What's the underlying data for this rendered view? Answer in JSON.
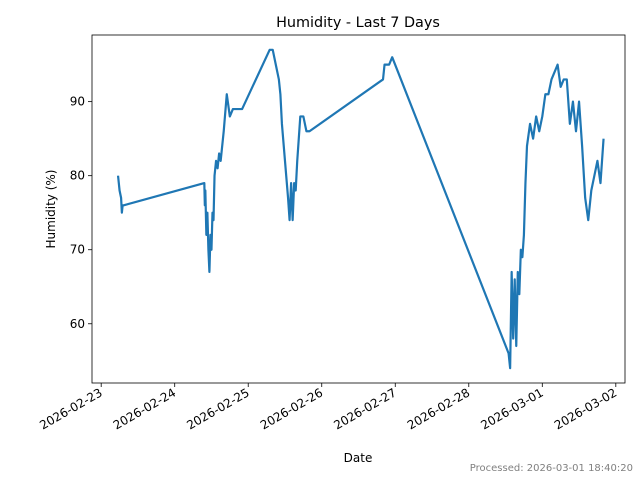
{
  "chart_data": {
    "type": "line",
    "title": "Humidity - Last 7 Days",
    "xlabel": "Date",
    "ylabel": "Humidity (%)",
    "x_tick_labels": [
      "2026-02-23",
      "2026-02-24",
      "2026-02-25",
      "2026-02-26",
      "2026-02-27",
      "2026-02-28",
      "2026-03-01",
      "2026-03-02"
    ],
    "y_ticks": [
      60,
      70,
      80,
      90
    ],
    "xlim": [
      "2026-02-22T21:00",
      "2026-03-02T03:00"
    ],
    "ylim": [
      52,
      99
    ],
    "grid": false,
    "line_color": "#1f77b4",
    "series": [
      {
        "x": [
          "2026-02-23T05:30",
          "2026-02-23T06:00",
          "2026-02-23T06:30",
          "2026-02-23T06:45",
          "2026-02-23T07:00",
          "2026-02-23T07:20",
          "2026-02-24T09:40",
          "2026-02-24T09:50",
          "2026-02-24T10:00",
          "2026-02-24T10:20",
          "2026-02-24T10:40",
          "2026-02-24T11:00",
          "2026-02-24T11:20",
          "2026-02-24T11:40",
          "2026-02-24T12:00",
          "2026-02-24T12:20",
          "2026-02-24T12:40",
          "2026-02-24T13:00",
          "2026-02-24T13:30",
          "2026-02-24T14:00",
          "2026-02-24T14:30",
          "2026-02-24T15:00",
          "2026-02-24T16:00",
          "2026-02-24T17:00",
          "2026-02-24T18:00",
          "2026-02-24T19:00",
          "2026-02-24T19:30",
          "2026-02-24T20:00",
          "2026-02-24T21:00",
          "2026-02-24T22:00",
          "2026-02-25T07:00",
          "2026-02-25T08:00",
          "2026-02-25T09:00",
          "2026-02-25T10:00",
          "2026-02-25T10:30",
          "2026-02-25T11:00",
          "2026-02-25T12:00",
          "2026-02-25T13:00",
          "2026-02-25T13:30",
          "2026-02-25T14:00",
          "2026-02-25T14:30",
          "2026-02-25T15:00",
          "2026-02-25T15:30",
          "2026-02-25T16:00",
          "2026-02-25T16:30",
          "2026-02-25T17:00",
          "2026-02-25T18:00",
          "2026-02-25T19:00",
          "2026-02-25T20:00",
          "2026-02-26T20:00",
          "2026-02-26T20:30",
          "2026-02-26T21:00",
          "2026-02-26T22:00",
          "2026-02-26T23:00",
          "2026-02-28T13:00",
          "2026-02-28T13:30",
          "2026-02-28T14:00",
          "2026-02-28T14:30",
          "2026-02-28T15:00",
          "2026-02-28T15:30",
          "2026-02-28T16:00",
          "2026-02-28T16:30",
          "2026-02-28T17:00",
          "2026-02-28T17:30",
          "2026-02-28T18:00",
          "2026-02-28T18:30",
          "2026-02-28T19:00",
          "2026-02-28T20:00",
          "2026-02-28T21:00",
          "2026-02-28T22:00",
          "2026-02-28T23:00",
          "2026-03-01T00:00",
          "2026-03-01T01:00",
          "2026-03-01T02:00",
          "2026-03-01T03:00",
          "2026-03-01T04:00",
          "2026-03-01T05:00",
          "2026-03-01T06:00",
          "2026-03-01T07:00",
          "2026-03-01T08:00",
          "2026-03-01T09:00",
          "2026-03-01T10:00",
          "2026-03-01T11:00",
          "2026-03-01T12:00",
          "2026-03-01T13:00",
          "2026-03-01T14:00",
          "2026-03-01T15:00",
          "2026-03-01T16:00",
          "2026-03-01T17:00",
          "2026-03-01T18:00",
          "2026-03-01T19:00",
          "2026-03-01T20:00"
        ],
        "y": [
          80,
          78,
          77,
          75,
          76,
          76,
          79,
          76,
          78,
          72,
          75,
          70,
          67,
          72,
          70,
          75,
          74,
          80,
          82,
          81,
          83,
          82,
          86,
          91,
          88,
          89,
          89,
          89,
          89,
          89,
          97,
          97,
          95,
          93,
          91,
          87,
          82,
          77,
          74,
          79,
          74,
          79,
          78,
          82,
          85,
          88,
          88,
          86,
          86,
          93,
          95,
          95,
          95,
          96,
          56,
          54,
          67,
          58,
          66,
          57,
          67,
          64,
          70,
          69,
          72,
          79,
          84,
          87,
          85,
          88,
          86,
          88,
          91,
          91,
          93,
          94,
          95,
          92,
          93,
          93,
          87,
          90,
          86,
          90,
          84,
          77,
          74,
          78,
          80,
          82,
          79,
          85
        ]
      }
    ],
    "footnote": "Processed: 2026-03-01 18:40:20"
  }
}
